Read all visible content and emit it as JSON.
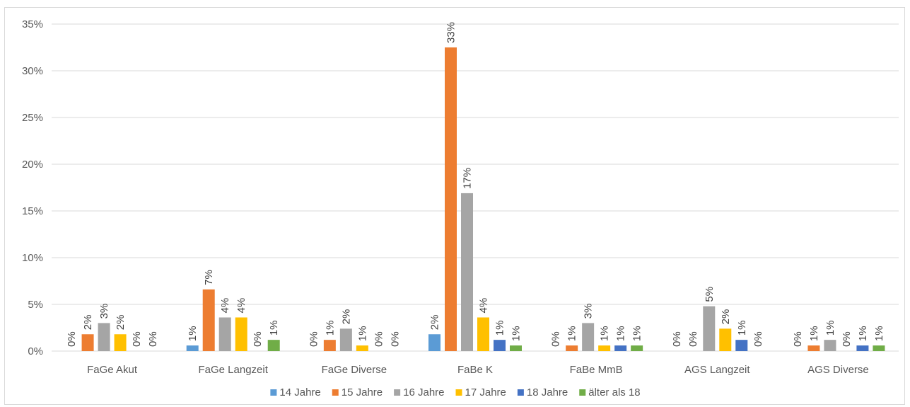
{
  "chart_data": {
    "type": "bar",
    "categories": [
      "FaGe Akut",
      "FaGe Langzeit",
      "FaGe Diverse",
      "FaBe K",
      "FaBe MmB",
      "AGS Langzeit",
      "AGS Diverse"
    ],
    "y_ticks": [
      "0%",
      "5%",
      "10%",
      "15%",
      "20%",
      "25%",
      "30%",
      "35%"
    ],
    "ylim": [
      0,
      35
    ],
    "grid": true,
    "legend_position": "bottom",
    "series": [
      {
        "name": "14 Jahre",
        "color": "#5b9bd5",
        "values": [
          0,
          0.6,
          0,
          1.8,
          0,
          0,
          0
        ],
        "labels": [
          "0%",
          "1%",
          "0%",
          "2%",
          "0%",
          "0%",
          "0%"
        ]
      },
      {
        "name": "15  Jahre",
        "color": "#ed7d31",
        "values": [
          1.8,
          6.6,
          1.2,
          32.5,
          0.6,
          0,
          0.6
        ],
        "labels": [
          "2%",
          "7%",
          "1%",
          "33%",
          "1%",
          "0%",
          "1%"
        ]
      },
      {
        "name": "16 Jahre",
        "color": "#a5a5a5",
        "values": [
          3.0,
          3.6,
          2.4,
          16.9,
          3.0,
          4.8,
          1.2
        ],
        "labels": [
          "3%",
          "4%",
          "2%",
          "17%",
          "3%",
          "5%",
          "1%"
        ]
      },
      {
        "name": "17 Jahre",
        "color": "#ffc000",
        "values": [
          1.8,
          3.6,
          0.6,
          3.6,
          0.6,
          2.4,
          0
        ],
        "labels": [
          "2%",
          "4%",
          "1%",
          "4%",
          "1%",
          "2%",
          "0%"
        ]
      },
      {
        "name": "18 Jahre",
        "color": "#4472c4",
        "values": [
          0,
          0,
          0,
          1.2,
          0.6,
          1.2,
          0.6
        ],
        "labels": [
          "0%",
          "0%",
          "0%",
          "1%",
          "1%",
          "1%",
          "1%"
        ]
      },
      {
        "name": "älter als 18",
        "color": "#70ad47",
        "values": [
          0,
          1.2,
          0,
          0.6,
          0.6,
          0,
          0.6
        ],
        "labels": [
          "0%",
          "1%",
          "0%",
          "1%",
          "1%",
          "0%",
          "1%"
        ]
      }
    ]
  }
}
